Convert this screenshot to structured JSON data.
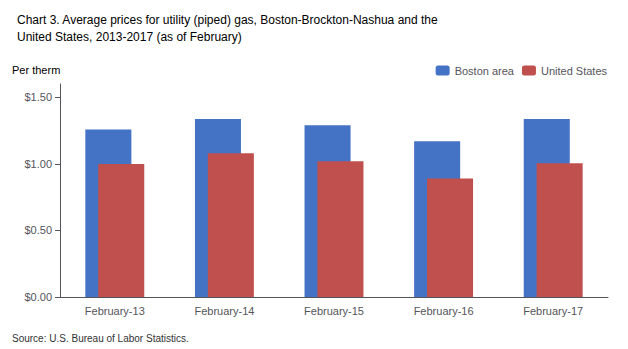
{
  "chart_data": {
    "type": "bar",
    "title": "Chart 3. Average prices for utility (piped) gas, Boston-Brockton-Nashua and the\nUnited States, 2013-2017 (as of February)",
    "ylabel": "Per therm",
    "annotations": [
      "Source: U.S. Bureau of Labor Statistics."
    ],
    "categories": [
      "February-13",
      "February-14",
      "February-15",
      "February-16",
      "February-17"
    ],
    "series": [
      {
        "name": "Boston area",
        "color": "#4472C4",
        "values": [
          1.258,
          1.338,
          1.29,
          1.17,
          1.338
        ]
      },
      {
        "name": "United States",
        "color": "#C0504D",
        "values": [
          1.0,
          1.08,
          1.02,
          0.89,
          1.005
        ]
      }
    ],
    "ylim": [
      0.0,
      1.6
    ],
    "yticks": [
      {
        "value": 0.0,
        "label": "$0.00"
      },
      {
        "value": 0.5,
        "label": "$0.50"
      },
      {
        "value": 1.0,
        "label": "$1.00"
      },
      {
        "value": 1.5,
        "label": "$1.50"
      }
    ],
    "grid": false,
    "legend": "upper right"
  }
}
